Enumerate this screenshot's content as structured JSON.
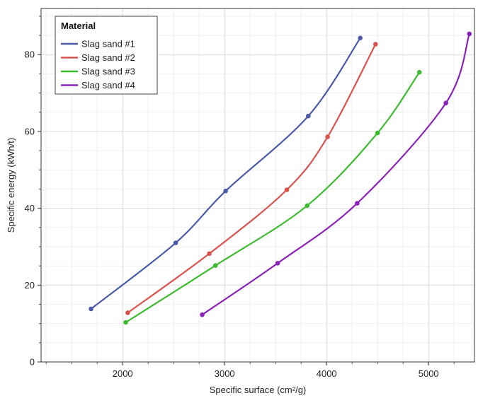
{
  "chart_data": {
    "type": "line",
    "xlabel": "Specific surface (cm²/g)",
    "ylabel": "Specific energy (kWh/t)",
    "xlim": [
      1200,
      5450
    ],
    "ylim": [
      0,
      92
    ],
    "xticks": [
      2000,
      3000,
      4000,
      5000
    ],
    "yticks": [
      0,
      20,
      40,
      60,
      80
    ],
    "grid": true,
    "legend": {
      "title": "Material",
      "placement": "top-left"
    },
    "series": [
      {
        "name": "Slag sand #1",
        "color": "#4a5aa8",
        "points": [
          [
            1690,
            13.8
          ],
          [
            2520,
            31.0
          ],
          [
            3010,
            44.5
          ],
          [
            3820,
            64.0
          ],
          [
            4330,
            84.3
          ]
        ]
      },
      {
        "name": "Slag sand #2",
        "color": "#d9534f",
        "points": [
          [
            2050,
            12.8
          ],
          [
            2850,
            28.2
          ],
          [
            3610,
            44.8
          ],
          [
            4010,
            58.6
          ],
          [
            4480,
            82.7
          ]
        ]
      },
      {
        "name": "Slag sand #3",
        "color": "#3dbb2f",
        "points": [
          [
            2030,
            10.3
          ],
          [
            2910,
            25.1
          ],
          [
            3810,
            40.7
          ],
          [
            4500,
            59.6
          ],
          [
            4910,
            75.4
          ]
        ]
      },
      {
        "name": "Slag sand #4",
        "color": "#8a24b8",
        "points": [
          [
            2780,
            12.3
          ],
          [
            3520,
            25.7
          ],
          [
            4300,
            41.3
          ],
          [
            5170,
            67.4
          ],
          [
            5400,
            85.4
          ]
        ]
      }
    ]
  }
}
